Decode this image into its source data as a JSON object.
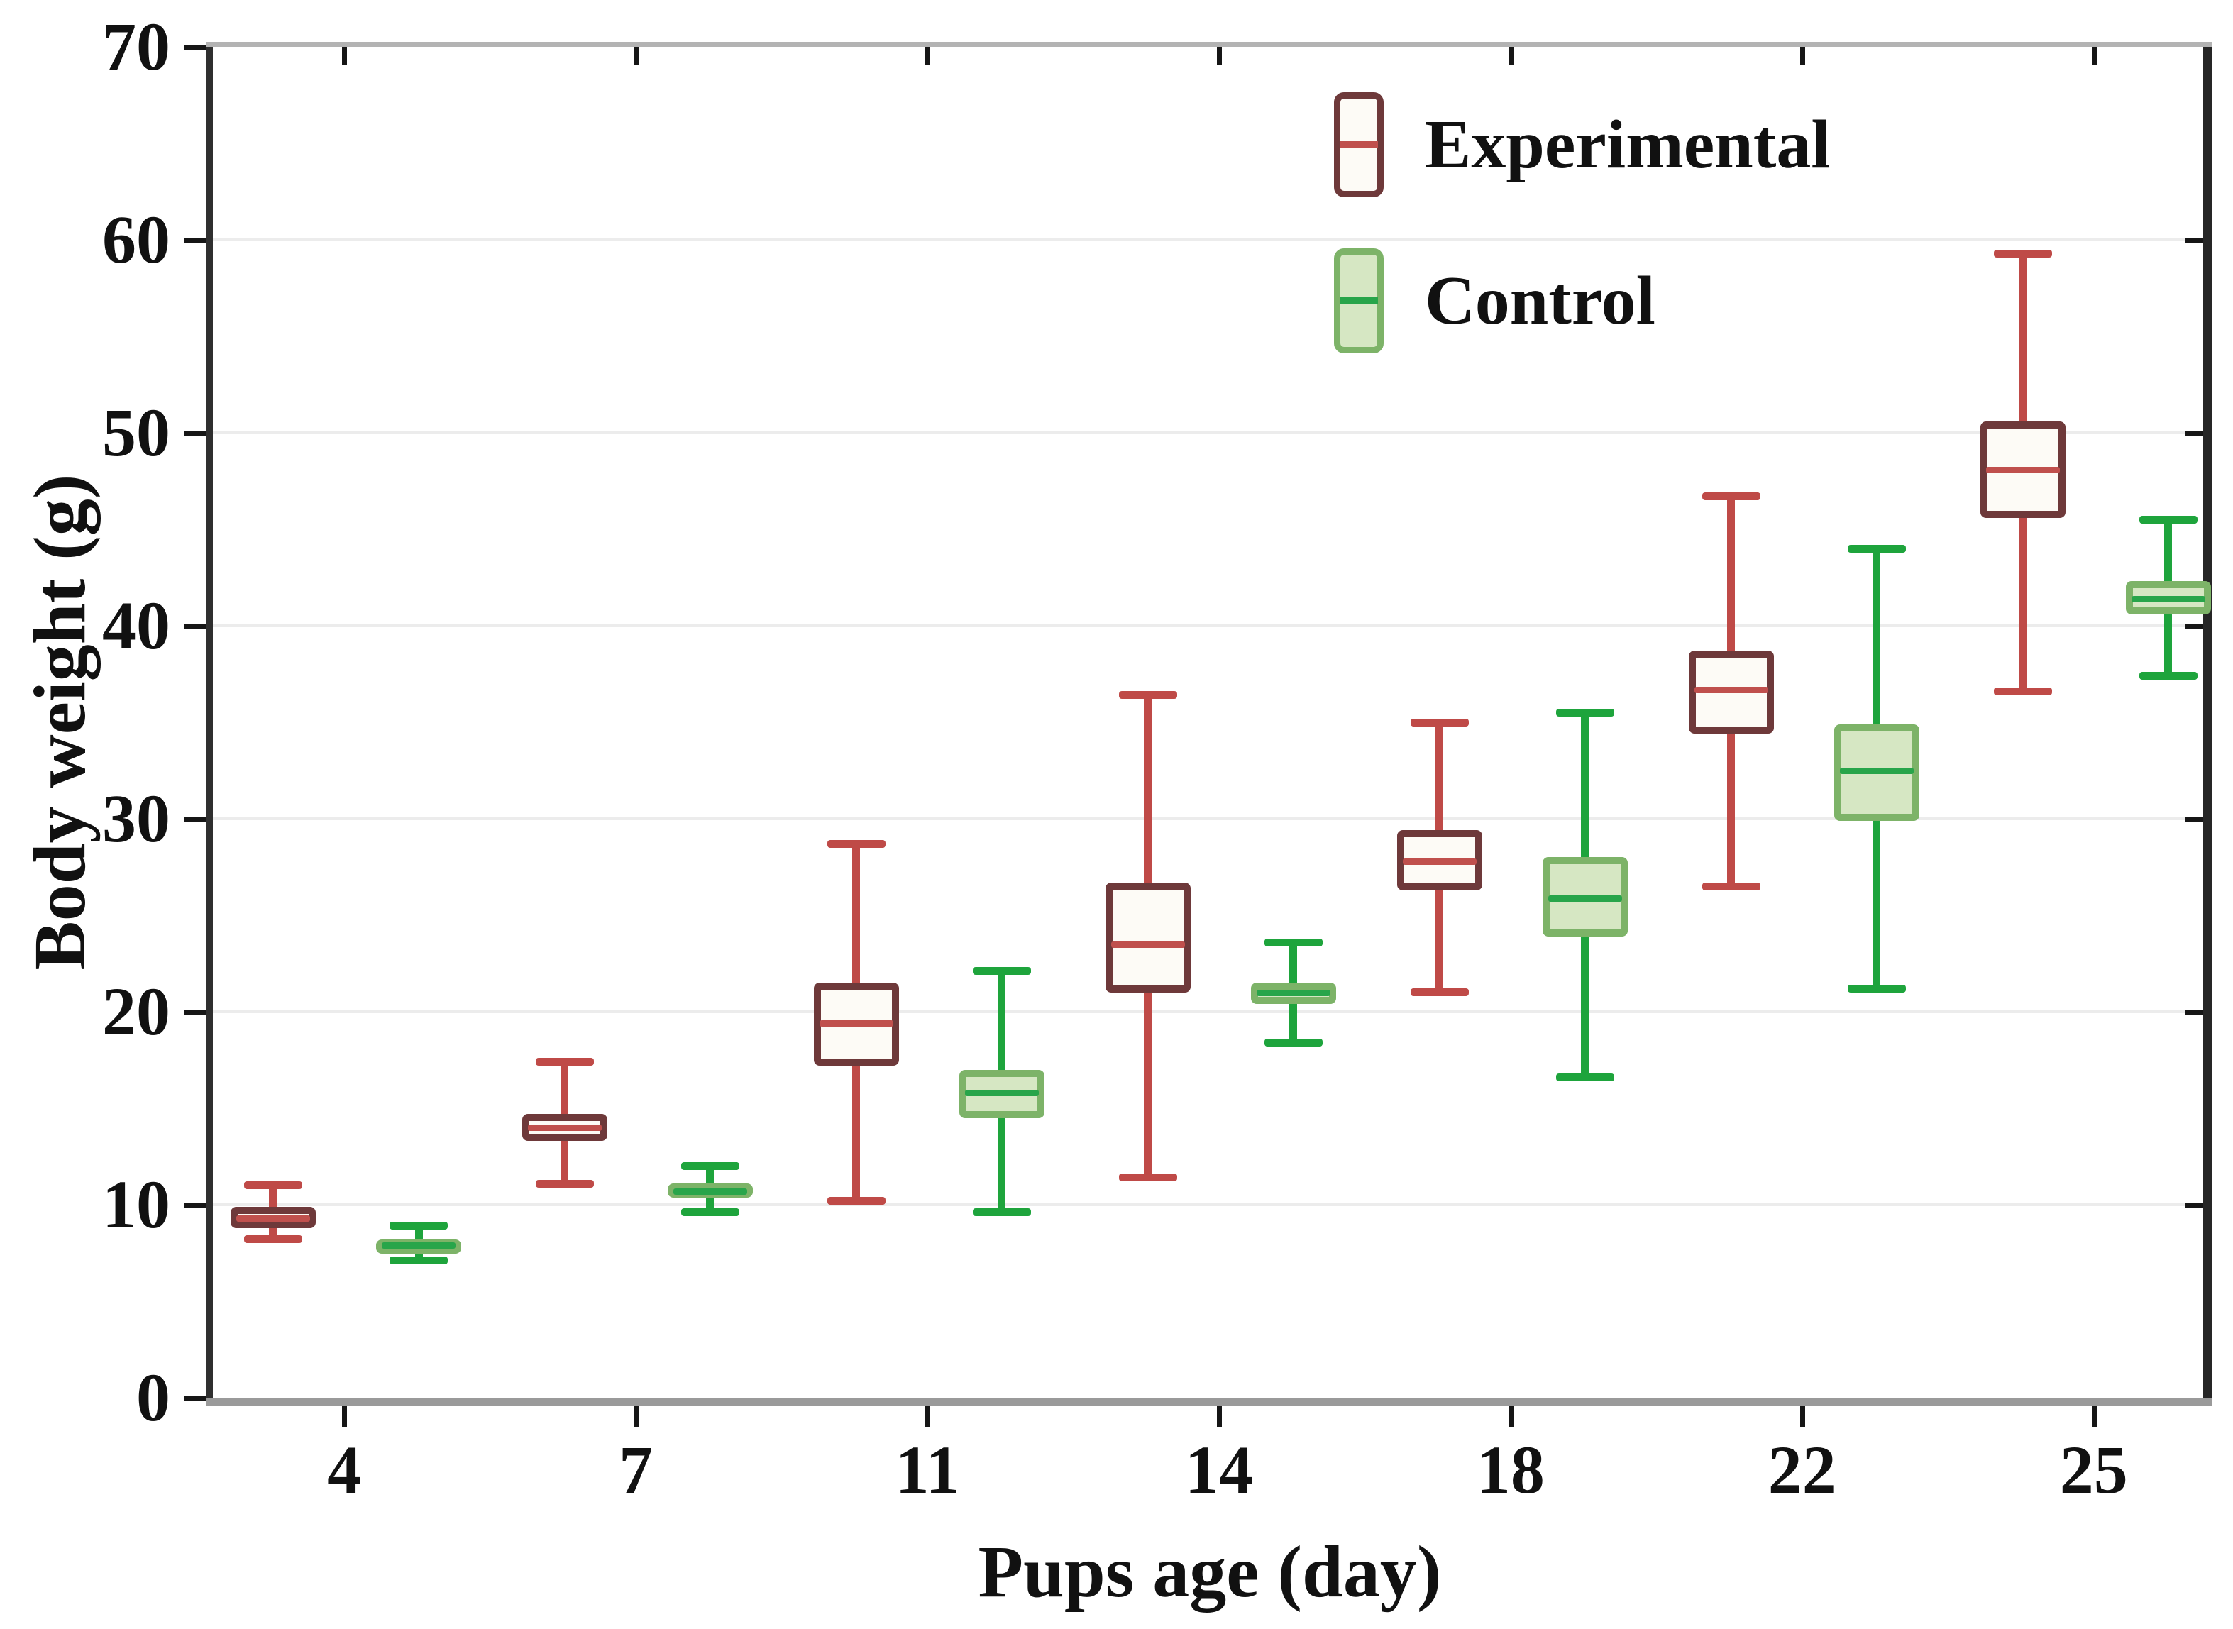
{
  "axes": {
    "xlabel": "Pups age (day)",
    "ylabel": "Body weight (g)",
    "x_tick_labels": [
      "4",
      "7",
      "11",
      "14",
      "18",
      "22",
      "25"
    ],
    "y_tick_labels": [
      "0",
      "10",
      "20",
      "30",
      "40",
      "50",
      "60",
      "70"
    ],
    "y_tick_values": [
      0,
      10,
      20,
      30,
      40,
      50,
      60,
      70
    ],
    "gridline_values": [
      10,
      20,
      30,
      40,
      50,
      60
    ],
    "grid_color": "#ececec"
  },
  "legend": {
    "position": "top-right-inside",
    "items": [
      {
        "label": "Experimental"
      },
      {
        "label": "Control"
      }
    ]
  },
  "chart_data": {
    "type": "box",
    "title": "",
    "xlabel": "Pups age (day)",
    "ylabel": "Body weight (g)",
    "ylim": [
      0,
      70
    ],
    "grid": "horizontal",
    "legend_position": "top-right-inside",
    "categories": [
      "4",
      "7",
      "11",
      "14",
      "18",
      "22",
      "25"
    ],
    "series": [
      {
        "name": "Experimental",
        "colors": {
          "box_border": "#6e393a",
          "box_fill": "#fdfbf6",
          "whisker": "#bf4a47",
          "median": "#c0504d"
        },
        "values": [
          {
            "day": "4",
            "whisker_low": 8.2,
            "q1": 8.8,
            "median": 9.3,
            "q3": 9.9,
            "whisker_high": 11.0
          },
          {
            "day": "7",
            "whisker_low": 11.1,
            "q1": 13.3,
            "median": 14.0,
            "q3": 14.7,
            "whisker_high": 17.4
          },
          {
            "day": "11",
            "whisker_low": 10.2,
            "q1": 17.2,
            "median": 19.4,
            "q3": 21.5,
            "whisker_high": 28.7
          },
          {
            "day": "14",
            "whisker_low": 11.4,
            "q1": 21.0,
            "median": 23.5,
            "q3": 26.7,
            "whisker_high": 36.4
          },
          {
            "day": "18",
            "whisker_low": 21.0,
            "q1": 26.3,
            "median": 27.8,
            "q3": 29.4,
            "whisker_high": 35.0
          },
          {
            "day": "22",
            "whisker_low": 26.5,
            "q1": 34.4,
            "median": 36.7,
            "q3": 38.7,
            "whisker_high": 46.7
          },
          {
            "day": "25",
            "whisker_low": 36.6,
            "q1": 45.6,
            "median": 48.1,
            "q3": 50.6,
            "whisker_high": 59.3
          }
        ]
      },
      {
        "name": "Control",
        "colors": {
          "box_border": "#7db368",
          "box_fill": "#d6e7c3",
          "whisker": "#1ea43c",
          "median": "#28a54a"
        },
        "values": [
          {
            "day": "4",
            "whisker_low": 7.1,
            "q1": 7.5,
            "median": 7.9,
            "q3": 8.2,
            "whisker_high": 8.9
          },
          {
            "day": "7",
            "whisker_low": 9.6,
            "q1": 10.4,
            "median": 10.7,
            "q3": 11.1,
            "whisker_high": 12.0
          },
          {
            "day": "11",
            "whisker_low": 9.6,
            "q1": 14.5,
            "median": 15.8,
            "q3": 17.0,
            "whisker_high": 22.1
          },
          {
            "day": "14",
            "whisker_low": 18.4,
            "q1": 20.4,
            "median": 21.0,
            "q3": 21.5,
            "whisker_high": 23.6
          },
          {
            "day": "18",
            "whisker_low": 16.6,
            "q1": 23.9,
            "median": 25.9,
            "q3": 28.0,
            "whisker_high": 35.5
          },
          {
            "day": "22",
            "whisker_low": 21.2,
            "q1": 29.9,
            "median": 32.5,
            "q3": 34.9,
            "whisker_high": 44.0
          },
          {
            "day": "25",
            "whisker_low": 37.4,
            "q1": 40.6,
            "median": 41.4,
            "q3": 42.3,
            "whisker_high": 45.5
          }
        ]
      }
    ]
  }
}
